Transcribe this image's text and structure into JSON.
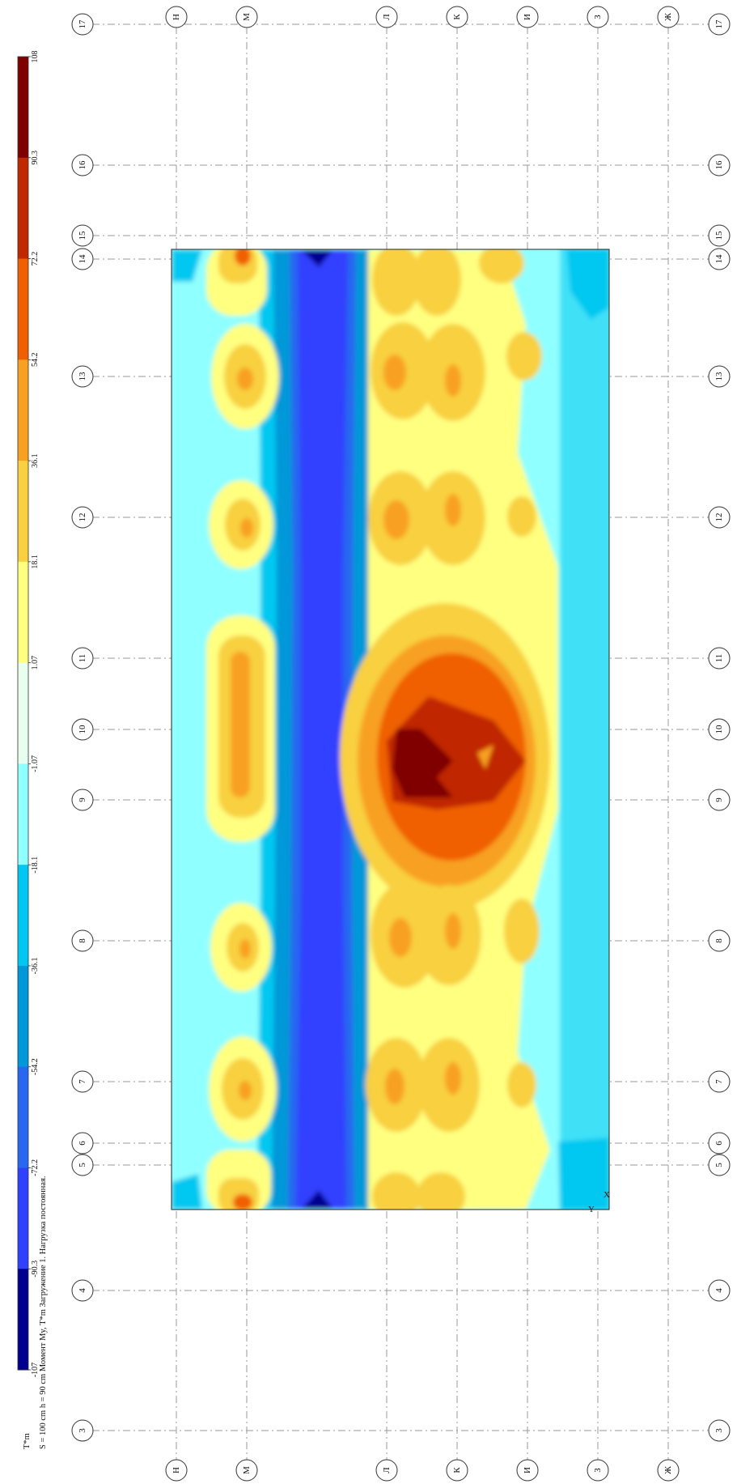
{
  "legend": {
    "values": [
      "108",
      "90.3",
      "72.2",
      "54.2",
      "36.1",
      "18.1",
      "1.07",
      "-1.07",
      "-18.1",
      "-36.1",
      "-54.2",
      "-72.2",
      "-90.3",
      "-107"
    ],
    "colors": [
      "#800000",
      "#c02800",
      "#f06000",
      "#f8a020",
      "#f8d040",
      "#ffff80",
      "#e8fff0",
      "#90ffff",
      "#00c8f0",
      "#0098d8",
      "#2868f0",
      "#3040ff",
      "#000090"
    ],
    "unit": "T*m"
  },
  "caption": {
    "line1": "S = 100 cm  h = 90 cm  Момент My, T*m  Загружение 1.   Нагрузка постоянная."
  },
  "grid": {
    "numbered_axes": [
      "3",
      "4",
      "5",
      "6",
      "7",
      "8",
      "9",
      "10",
      "11",
      "12",
      "13",
      "14",
      "15",
      "16",
      "17"
    ],
    "lettered_axes": [
      "Н",
      "М",
      "Л",
      "К",
      "И",
      "З",
      "Ж"
    ]
  },
  "axis_marks": {
    "y": "Y",
    "x": "X"
  }
}
